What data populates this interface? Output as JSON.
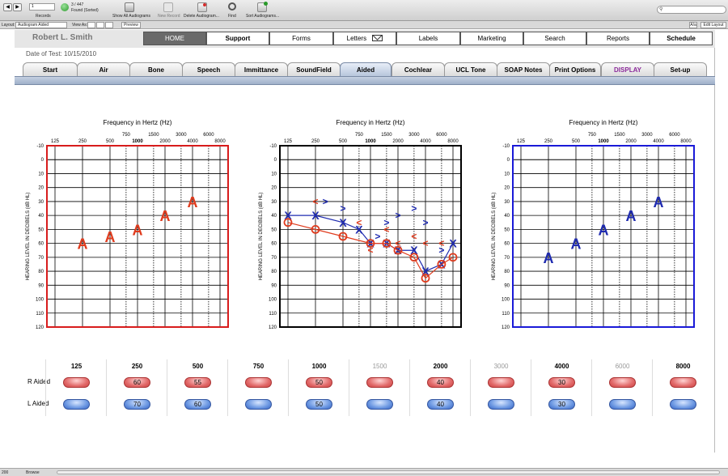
{
  "toolbar": {
    "record_value": "1",
    "records_label": "Records",
    "found_count": "3 / 447",
    "found_label": "Found (Sorted)",
    "buttons": [
      "Show All Audiograms",
      "New Record",
      "Delete Audiogram...",
      "Find",
      "Sort Audiograms..."
    ]
  },
  "layoutbar": {
    "layout_label": "Layout:",
    "layout_value": "Audiogram Aided",
    "view_as_label": "View As:",
    "preview_label": "Preview",
    "aa_label": "A/a",
    "edit_layout_label": "Edit Layout"
  },
  "patient_name": "Robert L. Smith",
  "nav": [
    "HOME",
    "Support",
    "Forms",
    "Letters",
    "Labels",
    "Marketing",
    "Search",
    "Reports",
    "Schedule"
  ],
  "date_of_test": "Date of Test: 10/15/2010",
  "tabs": [
    "Start",
    "Air",
    "Bone",
    "Speech",
    "Immittance",
    "SoundField",
    "Aided",
    "Cochlear",
    "UCL Tone",
    "SOAP Notes",
    "Print Options",
    "DISPLAY",
    "Set-up"
  ],
  "active_tab": "Aided",
  "colors": {
    "right": "#e03c1e",
    "left": "#1f2bb0",
    "display_tab": "#8b2a9a"
  },
  "audiogram": {
    "title": "Frequency in Hertz (Hz)",
    "ylabel": "HEARING LEVEL IN DECIBELS (dB HL)",
    "top_ticks": [
      "125",
      "250",
      "500",
      "1000",
      "2000",
      "4000",
      "8000"
    ],
    "mid_ticks": [
      "750",
      "1500",
      "3000",
      "6000"
    ],
    "y_ticks": [
      "-10",
      "0",
      "10",
      "20",
      "30",
      "40",
      "50",
      "60",
      "70",
      "80",
      "90",
      "100",
      "110",
      "120"
    ]
  },
  "chart_data": [
    {
      "type": "scatter",
      "name": "right-aided",
      "symbol": "A",
      "x": [
        250,
        500,
        1000,
        2000,
        4000
      ],
      "y": [
        60,
        55,
        50,
        40,
        30
      ],
      "ylim": [
        -10,
        120
      ]
    },
    {
      "type": "line",
      "name": "combined",
      "series": [
        {
          "symbol": "X",
          "x": [
            125,
            250,
            500,
            750,
            1000,
            1500,
            2000,
            3000,
            4000,
            6000,
            8000
          ],
          "y": [
            40,
            40,
            45,
            50,
            60,
            60,
            65,
            65,
            80,
            75,
            60
          ]
        },
        {
          "symbol": "O",
          "x": [
            125,
            250,
            500,
            1000,
            1500,
            2000,
            3000,
            4000,
            6000,
            8000
          ],
          "y": [
            45,
            50,
            55,
            60,
            60,
            65,
            70,
            85,
            75,
            70
          ]
        },
        {
          "symbol": "<",
          "x": [
            250,
            750,
            1000,
            1500,
            2000,
            3000,
            4000,
            6000
          ],
          "y": [
            30,
            45,
            65,
            50,
            60,
            55,
            60,
            60
          ]
        },
        {
          "symbol": ">",
          "x": [
            320,
            500,
            1200,
            1500,
            2000,
            3000,
            4000,
            6000
          ],
          "y": [
            30,
            35,
            55,
            45,
            40,
            35,
            45,
            65
          ]
        }
      ],
      "ylim": [
        -10,
        120
      ]
    },
    {
      "type": "scatter",
      "name": "left-aided",
      "symbol": "A",
      "x": [
        250,
        500,
        1000,
        2000,
        4000
      ],
      "y": [
        70,
        60,
        50,
        40,
        30
      ],
      "ylim": [
        -10,
        120
      ]
    }
  ],
  "table": {
    "r_label": "R Aided",
    "l_label": "L Aided",
    "columns": [
      {
        "freq": "125",
        "r": "",
        "l": ""
      },
      {
        "freq": "250",
        "r": "60",
        "l": "70"
      },
      {
        "freq": "500",
        "r": "55",
        "l": "60"
      },
      {
        "freq": "750",
        "r": "",
        "l": ""
      },
      {
        "freq": "1000",
        "r": "50",
        "l": "50"
      },
      {
        "freq": "1500",
        "r": "",
        "l": ""
      },
      {
        "freq": "2000",
        "r": "40",
        "l": "40"
      },
      {
        "freq": "3000",
        "r": "",
        "l": ""
      },
      {
        "freq": "4000",
        "r": "30",
        "l": "30"
      },
      {
        "freq": "6000",
        "r": "",
        "l": ""
      },
      {
        "freq": "8000",
        "r": "",
        "l": ""
      }
    ]
  },
  "statusbar": {
    "zoom": "200",
    "mode": "Browse"
  }
}
